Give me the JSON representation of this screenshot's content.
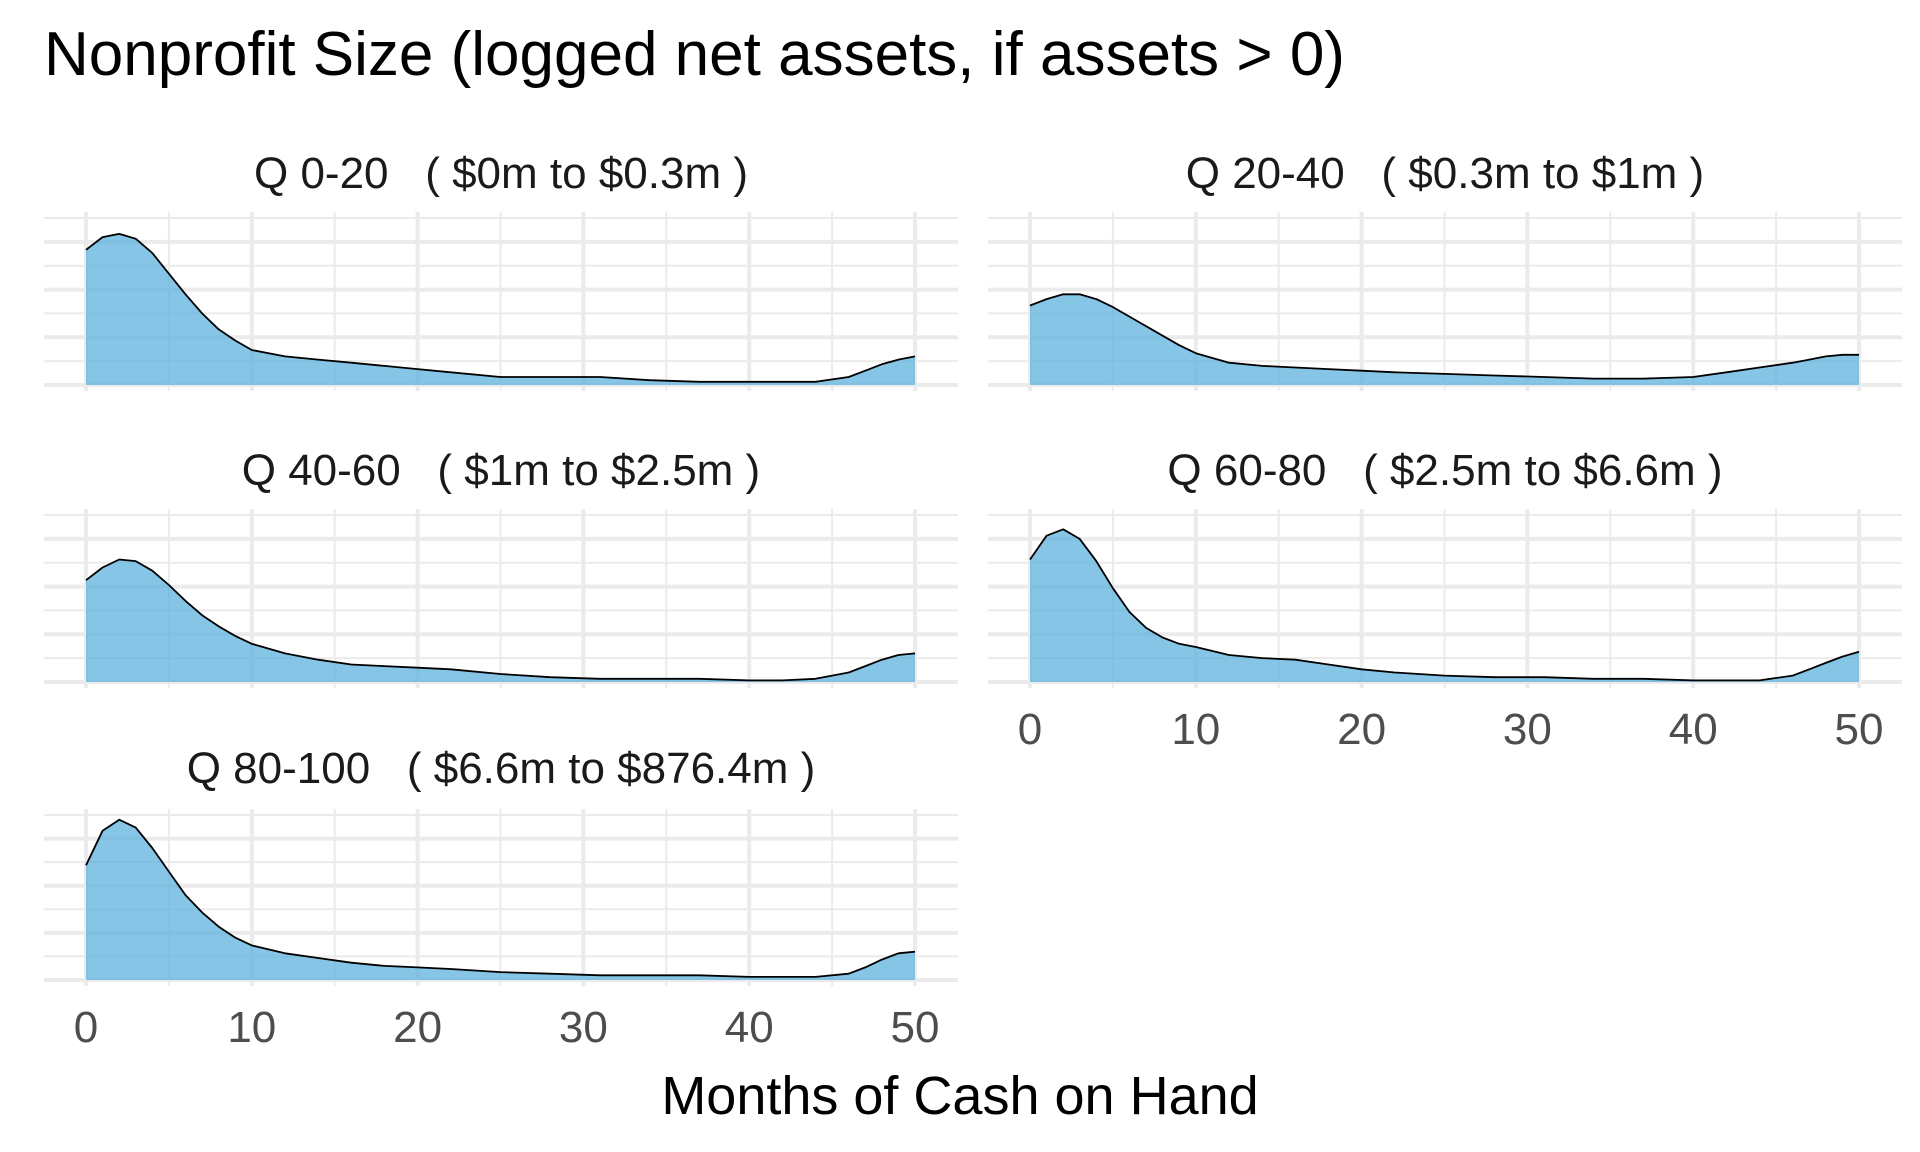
{
  "title": "Nonprofit Size (logged net assets, if assets > 0)",
  "chart_data": {
    "type": "area",
    "subtype": "faceted density",
    "title": "Nonprofit Size (logged net assets, if assets > 0)",
    "xlabel": "Months of Cash on Hand",
    "ylabel": "",
    "xlim": [
      0,
      50
    ],
    "x_ticks": [
      0,
      10,
      20,
      30,
      40,
      50
    ],
    "fill_color": "#5DB1DE",
    "line_color": "#000000",
    "grid_color": "#EBEBEB",
    "grid": true,
    "legend": "none",
    "panels": [
      {
        "label": "Q 0-20   ( $0m to $0.3m )",
        "x": [
          0,
          1,
          2,
          3,
          4,
          5,
          6,
          7,
          8,
          9,
          10,
          12,
          14,
          16,
          18,
          20,
          22,
          25,
          28,
          31,
          34,
          37,
          40,
          42,
          44,
          46,
          47,
          48,
          49,
          50
        ],
        "y": [
          0.85,
          0.93,
          0.95,
          0.92,
          0.83,
          0.7,
          0.57,
          0.45,
          0.35,
          0.28,
          0.22,
          0.18,
          0.16,
          0.14,
          0.12,
          0.1,
          0.08,
          0.05,
          0.05,
          0.05,
          0.03,
          0.02,
          0.02,
          0.02,
          0.02,
          0.05,
          0.09,
          0.13,
          0.16,
          0.18
        ]
      },
      {
        "label": "Q 20-40   ( $0.3m to $1m )",
        "x": [
          0,
          1,
          2,
          3,
          4,
          5,
          6,
          7,
          8,
          9,
          10,
          12,
          14,
          16,
          18,
          20,
          22,
          25,
          28,
          31,
          34,
          37,
          40,
          42,
          44,
          46,
          47,
          48,
          49,
          50
        ],
        "y": [
          0.5,
          0.54,
          0.57,
          0.57,
          0.54,
          0.49,
          0.43,
          0.37,
          0.31,
          0.25,
          0.2,
          0.14,
          0.12,
          0.11,
          0.1,
          0.09,
          0.08,
          0.07,
          0.06,
          0.05,
          0.04,
          0.04,
          0.05,
          0.08,
          0.11,
          0.14,
          0.16,
          0.18,
          0.19,
          0.19
        ]
      },
      {
        "label": "Q 40-60   ( $1m to $2.5m )",
        "x": [
          0,
          1,
          2,
          3,
          4,
          5,
          6,
          7,
          8,
          9,
          10,
          12,
          14,
          16,
          18,
          20,
          22,
          25,
          28,
          31,
          34,
          37,
          40,
          42,
          44,
          46,
          47,
          48,
          49,
          50
        ],
        "y": [
          0.64,
          0.72,
          0.77,
          0.76,
          0.7,
          0.61,
          0.51,
          0.42,
          0.35,
          0.29,
          0.24,
          0.18,
          0.14,
          0.11,
          0.1,
          0.09,
          0.08,
          0.05,
          0.03,
          0.02,
          0.02,
          0.02,
          0.01,
          0.01,
          0.02,
          0.06,
          0.1,
          0.14,
          0.17,
          0.18
        ]
      },
      {
        "label": "Q 60-80   ( $2.5m to $6.6m )",
        "x": [
          0,
          1,
          2,
          3,
          4,
          5,
          6,
          7,
          8,
          9,
          10,
          12,
          14,
          16,
          18,
          20,
          22,
          25,
          28,
          31,
          34,
          37,
          40,
          42,
          44,
          46,
          47,
          48,
          49,
          50
        ],
        "y": [
          0.77,
          0.92,
          0.96,
          0.9,
          0.76,
          0.59,
          0.44,
          0.34,
          0.28,
          0.24,
          0.22,
          0.17,
          0.15,
          0.14,
          0.11,
          0.08,
          0.06,
          0.04,
          0.03,
          0.03,
          0.02,
          0.02,
          0.01,
          0.01,
          0.01,
          0.04,
          0.08,
          0.12,
          0.16,
          0.19
        ]
      },
      {
        "label": "Q 80-100   ( $6.6m to $876.4m )",
        "x": [
          0,
          1,
          2,
          3,
          4,
          5,
          6,
          7,
          8,
          9,
          10,
          12,
          14,
          16,
          18,
          20,
          22,
          25,
          28,
          31,
          34,
          37,
          40,
          42,
          44,
          46,
          47,
          48,
          49,
          50
        ],
        "y": [
          0.73,
          0.95,
          1.02,
          0.97,
          0.84,
          0.69,
          0.54,
          0.43,
          0.34,
          0.27,
          0.22,
          0.17,
          0.14,
          0.11,
          0.09,
          0.08,
          0.07,
          0.05,
          0.04,
          0.03,
          0.03,
          0.03,
          0.02,
          0.02,
          0.02,
          0.04,
          0.08,
          0.13,
          0.17,
          0.18
        ]
      }
    ]
  }
}
